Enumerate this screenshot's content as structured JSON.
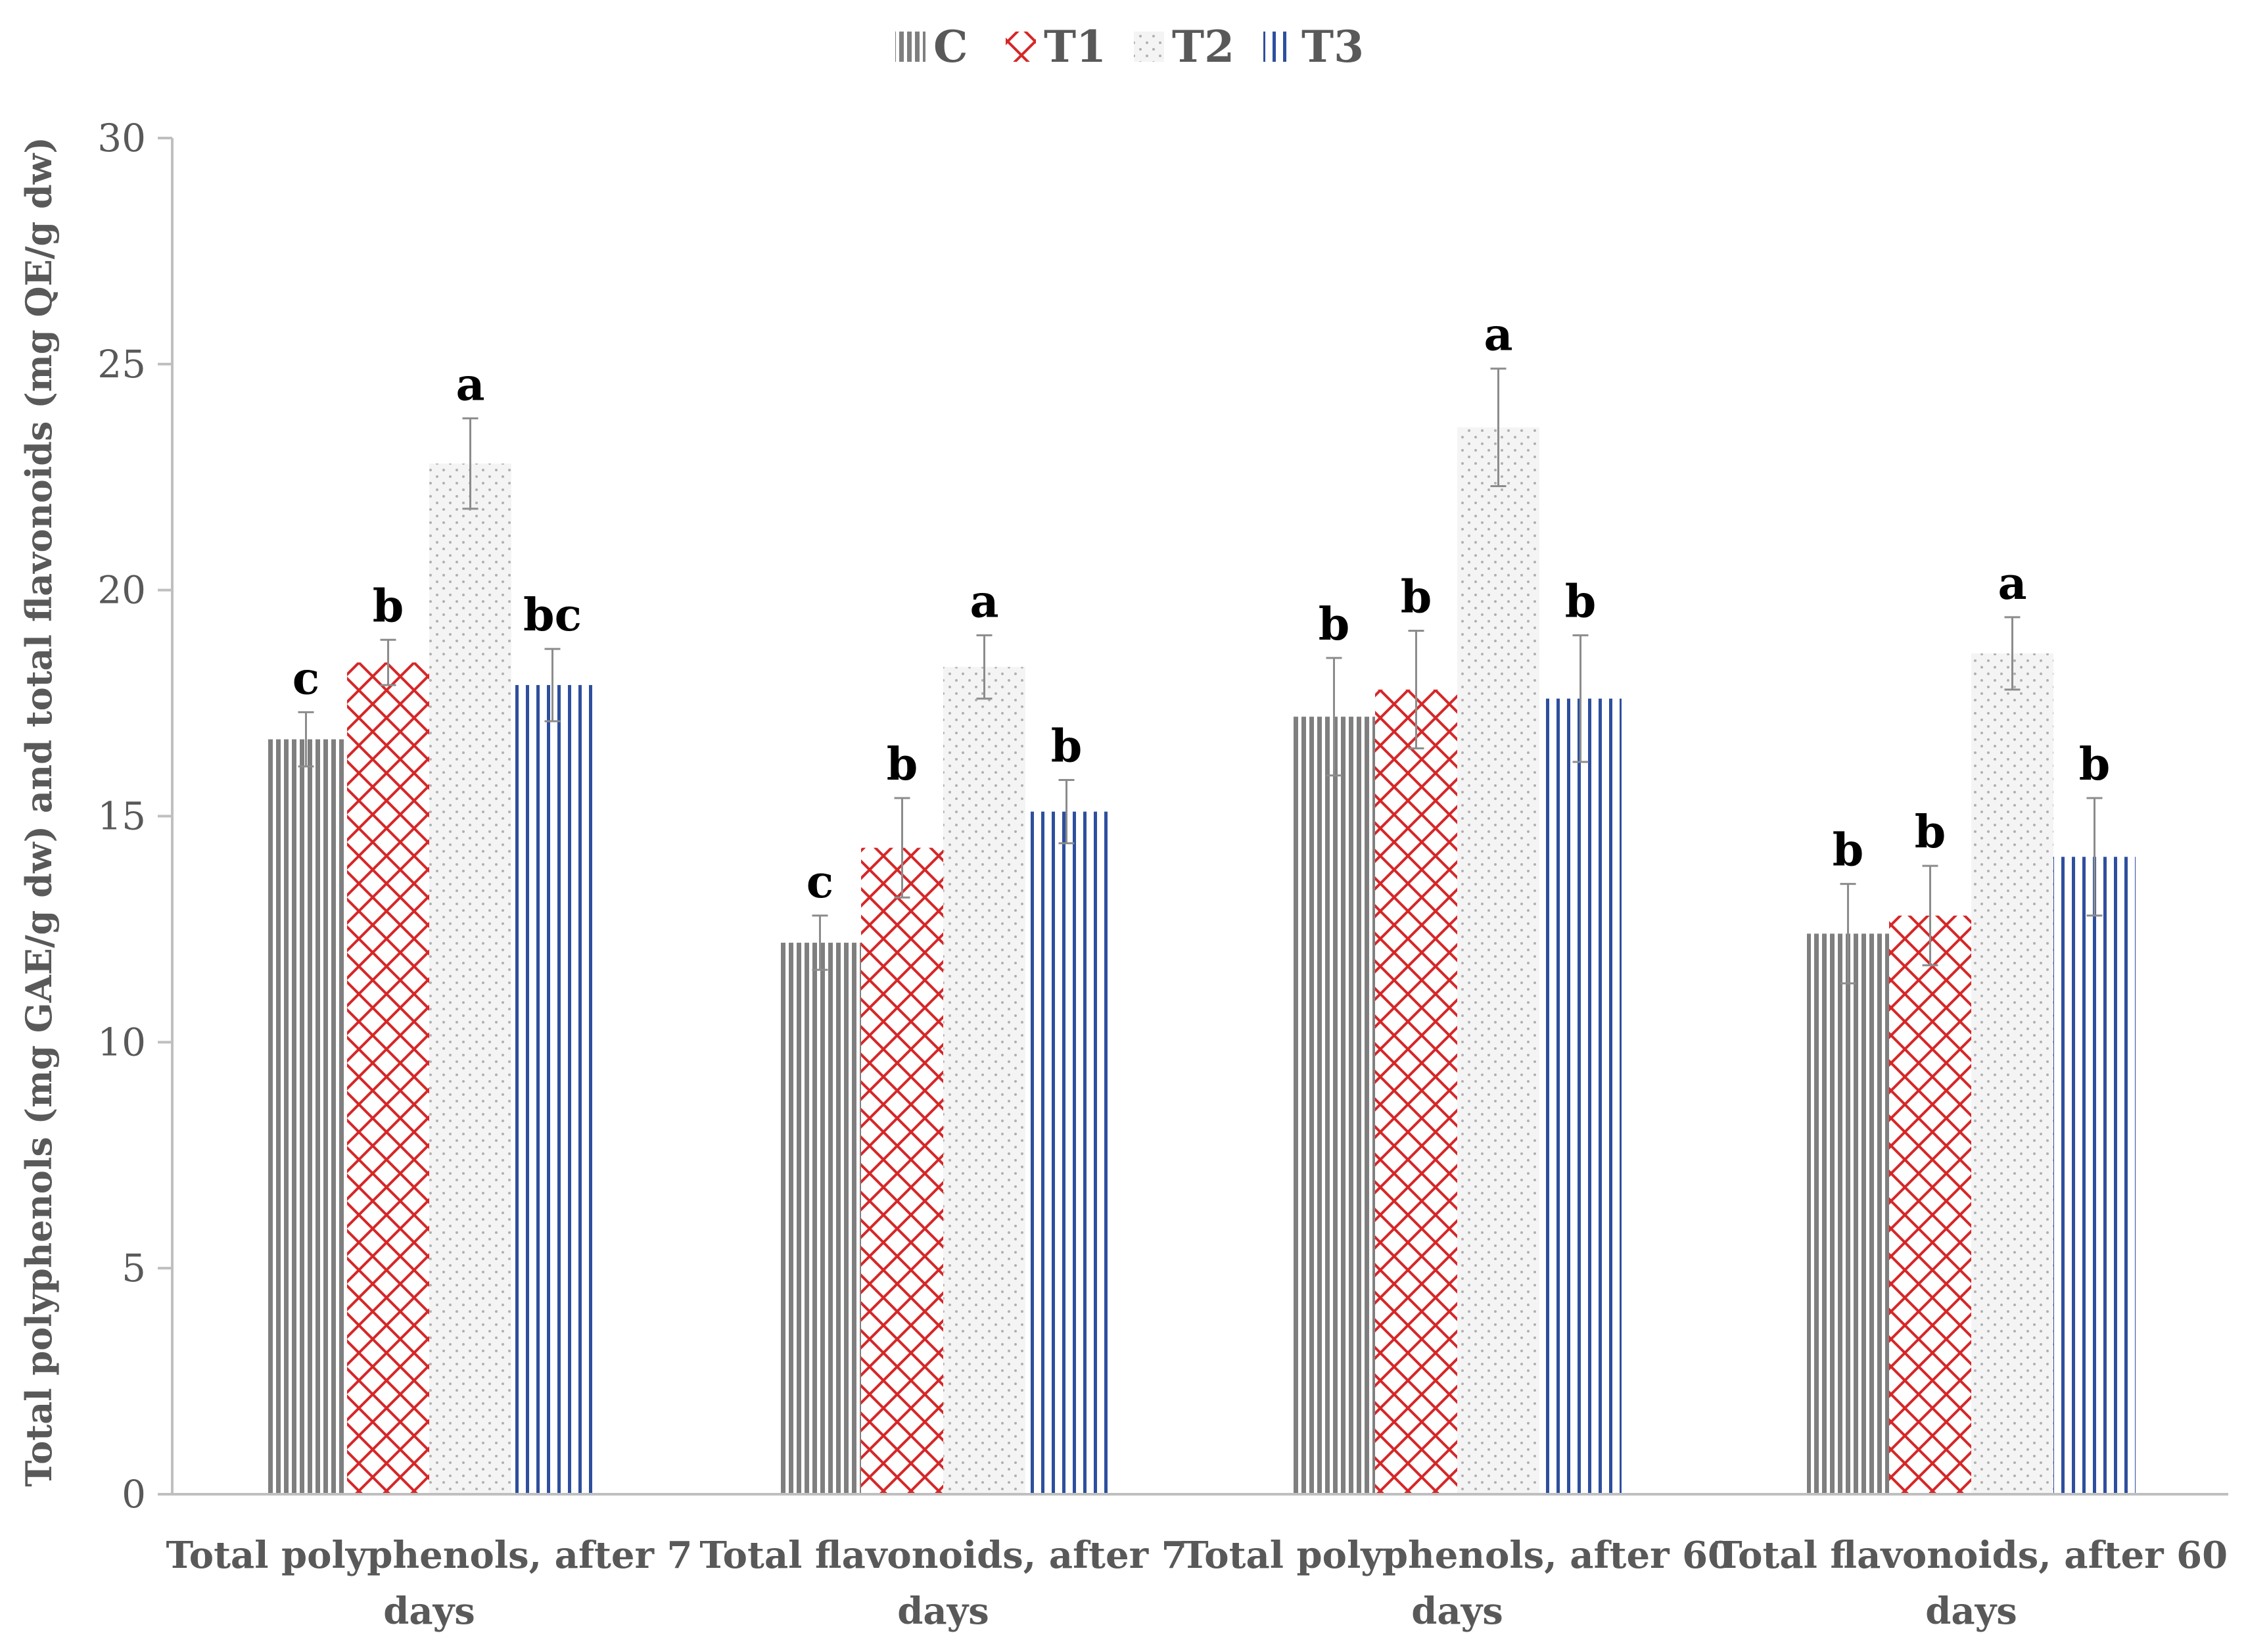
{
  "chart_data": {
    "type": "bar",
    "title": "",
    "xlabel": "",
    "ylabel": "Total polyphenols (mg GAE/g dw) and total flavonoids (mg QE/g dw)",
    "ylim": [
      0,
      30
    ],
    "yticks": [
      0,
      5,
      10,
      15,
      20,
      25,
      30
    ],
    "grid": false,
    "legend_position": "top-center",
    "categories": [
      [
        "Total polyphenols, after 7",
        "days"
      ],
      [
        "Total flavonoids, after 7",
        "days"
      ],
      [
        "Total polyphenols, after 60",
        "days"
      ],
      [
        "Total flavonoids, after 60",
        "days"
      ]
    ],
    "series": [
      {
        "name": "C",
        "pattern": "vertical-dense",
        "color": "#7f7f7f",
        "values": [
          16.7,
          12.2,
          17.2,
          12.4
        ],
        "errors": [
          0.6,
          0.6,
          1.3,
          1.1
        ],
        "letters": [
          "c",
          "c",
          "b",
          "b"
        ]
      },
      {
        "name": "T1",
        "pattern": "crosshatch",
        "color": "#d62728",
        "values": [
          18.4,
          14.3,
          17.8,
          12.8
        ],
        "errors": [
          0.5,
          1.1,
          1.3,
          1.1
        ],
        "letters": [
          "b",
          "b",
          "b",
          "b"
        ]
      },
      {
        "name": "T2",
        "pattern": "dotted",
        "color": "#bfbfbf",
        "values": [
          22.8,
          18.3,
          23.6,
          18.6
        ],
        "errors": [
          1.0,
          0.7,
          1.3,
          0.8
        ],
        "letters": [
          "a",
          "a",
          "a",
          "a"
        ]
      },
      {
        "name": "T3",
        "pattern": "vertical-stripes",
        "color": "#2e4f9e",
        "values": [
          17.9,
          15.1,
          17.6,
          14.1
        ],
        "errors": [
          0.8,
          0.7,
          1.4,
          1.3
        ],
        "letters": [
          "bc",
          "b",
          "b",
          "b"
        ]
      }
    ]
  }
}
